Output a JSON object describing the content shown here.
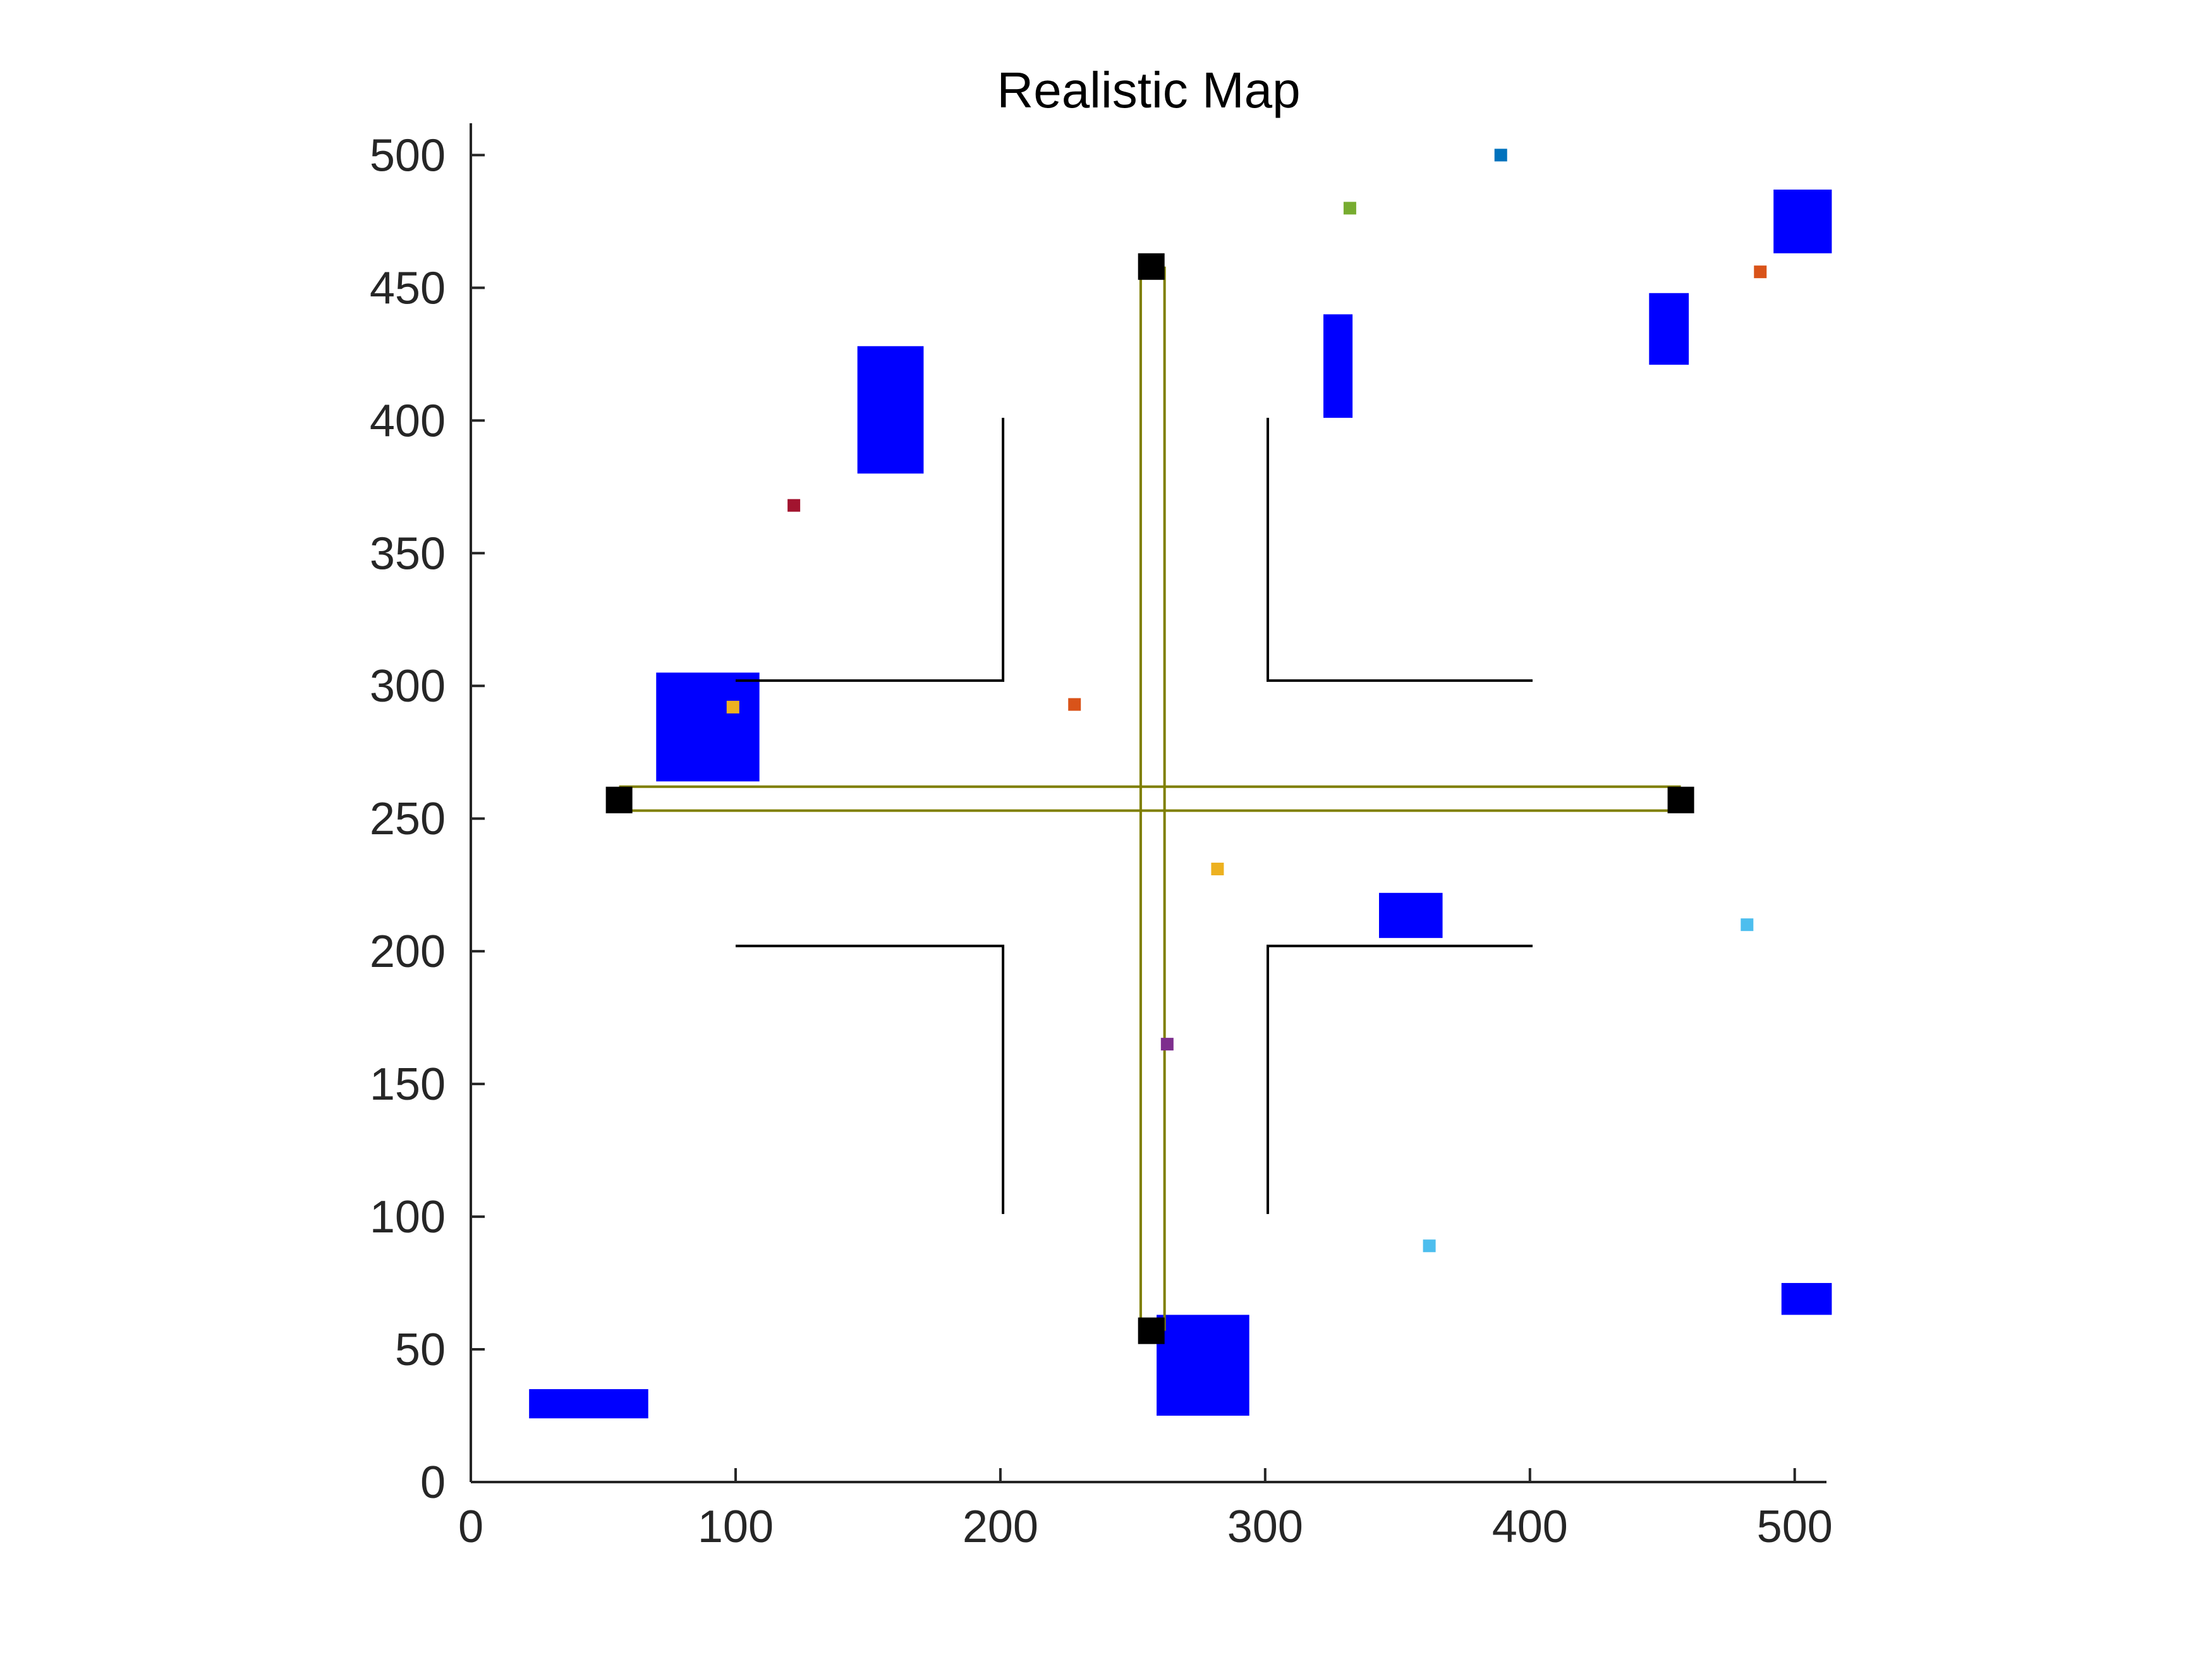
{
  "chart_data": {
    "type": "scatter",
    "title": "Realistic Map",
    "xlabel": "",
    "ylabel": "",
    "xlim": [
      0,
      512
    ],
    "ylim": [
      0,
      512
    ],
    "x_ticks": [
      0,
      100,
      200,
      300,
      400,
      500
    ],
    "y_ticks": [
      0,
      50,
      100,
      150,
      200,
      250,
      300,
      350,
      400,
      450,
      500
    ],
    "grid": false,
    "colors": {
      "obstacle": "#0000ff",
      "wall": "#000000",
      "path": "#7f7f00",
      "node": "#000000",
      "axis": "#262626"
    },
    "obstacles": [
      {
        "x": 22,
        "y": 24,
        "width": 45,
        "height": 11
      },
      {
        "x": 70,
        "y": 264,
        "width": 39,
        "height": 41
      },
      {
        "x": 146,
        "y": 380,
        "width": 25,
        "height": 48
      },
      {
        "x": 259,
        "y": 25,
        "width": 35,
        "height": 38
      },
      {
        "x": 322,
        "y": 401,
        "width": 11,
        "height": 39
      },
      {
        "x": 343,
        "y": 205,
        "width": 24,
        "height": 17
      },
      {
        "x": 445,
        "y": 421,
        "width": 15,
        "height": 27
      },
      {
        "x": 492,
        "y": 463,
        "width": 22,
        "height": 24
      },
      {
        "x": 495,
        "y": 63,
        "width": 19,
        "height": 12
      }
    ],
    "walls": [
      {
        "x": [
          100,
          201,
          201
        ],
        "y": [
          302,
          302,
          401
        ]
      },
      {
        "x": [
          301,
          301,
          401
        ],
        "y": [
          401,
          302,
          302
        ]
      },
      {
        "x": [
          100,
          201,
          201
        ],
        "y": [
          202,
          202,
          101
        ]
      },
      {
        "x": [
          301,
          301,
          401
        ],
        "y": [
          101,
          202,
          202
        ]
      }
    ],
    "road_paths": [
      {
        "x": [
          56,
          457
        ],
        "y": [
          262,
          262
        ]
      },
      {
        "x": [
          56,
          457
        ],
        "y": [
          253,
          253
        ]
      },
      {
        "x": [
          253,
          253
        ],
        "y": [
          57,
          458
        ]
      },
      {
        "x": [
          262,
          262
        ],
        "y": [
          57,
          458
        ]
      }
    ],
    "road_nodes": [
      {
        "x": 56,
        "y": 257
      },
      {
        "x": 457,
        "y": 257
      },
      {
        "x": 257,
        "y": 458
      },
      {
        "x": 257,
        "y": 57
      }
    ],
    "points": [
      {
        "x": 389,
        "y": 500,
        "color": "#0072bd"
      },
      {
        "x": 332,
        "y": 480,
        "color": "#77ac30"
      },
      {
        "x": 487,
        "y": 456,
        "color": "#d95319"
      },
      {
        "x": 122,
        "y": 368,
        "color": "#a2142f"
      },
      {
        "x": 228,
        "y": 293,
        "color": "#d95319"
      },
      {
        "x": 99,
        "y": 292,
        "color": "#edb120"
      },
      {
        "x": 282,
        "y": 231,
        "color": "#edb120"
      },
      {
        "x": 482,
        "y": 210,
        "color": "#4dbeee"
      },
      {
        "x": 263,
        "y": 165,
        "color": "#7e2f8e"
      },
      {
        "x": 362,
        "y": 89,
        "color": "#4dbeee"
      }
    ]
  }
}
